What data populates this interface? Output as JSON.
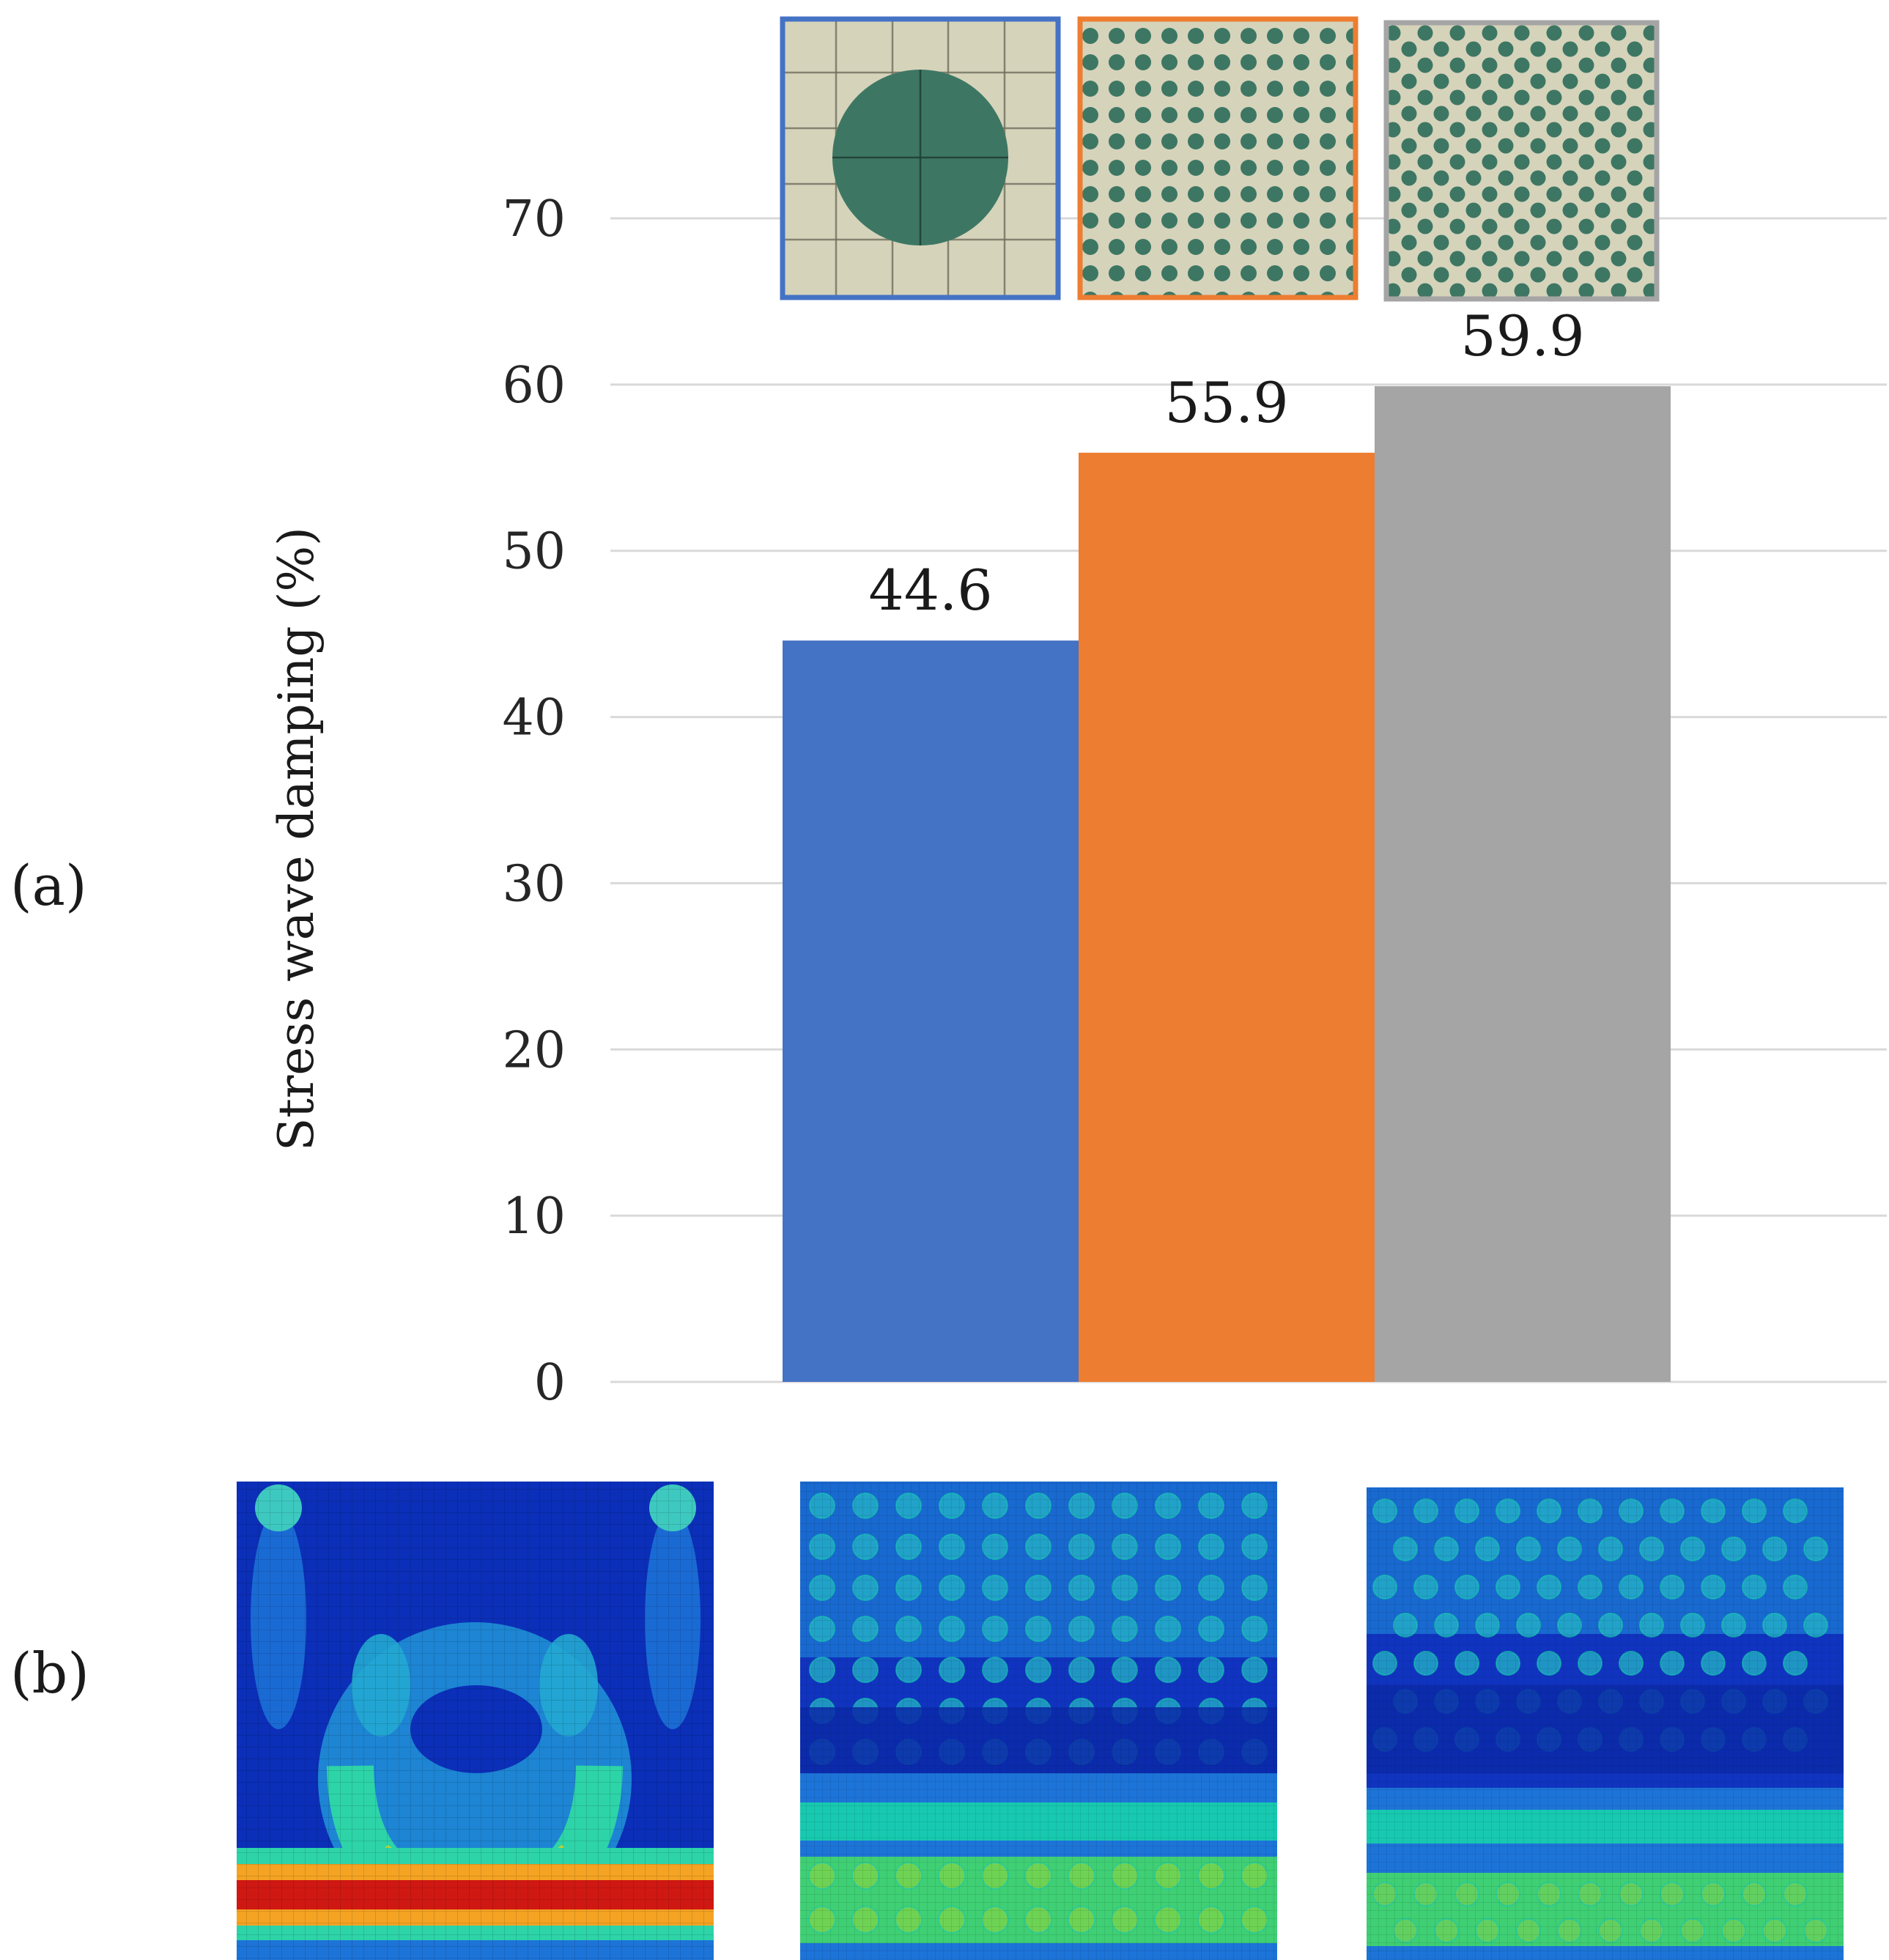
{
  "chart_data": {
    "type": "bar",
    "categories": [
      "single large fiber",
      "square array of fibers",
      "hexagonal array of fibers"
    ],
    "values": [
      44.6,
      55.9,
      59.9
    ],
    "data_labels": [
      "44.6",
      "55.9",
      "59.9"
    ],
    "colors": [
      "#4472c4",
      "#ed7d31",
      "#a5a5a5"
    ],
    "title": "",
    "xlabel": "",
    "ylabel": "Stress wave damping (%)",
    "ylim": [
      0,
      70
    ],
    "yticks": [
      0,
      10,
      20,
      30,
      40,
      50,
      60,
      70
    ],
    "ytick_labels": [
      "0",
      "10",
      "20",
      "30",
      "40",
      "50",
      "60",
      "70"
    ],
    "grid": true
  },
  "panels": {
    "a_label": "(a)",
    "b_label": "(b)"
  },
  "microstructure_insets": [
    "single-fiber-cell",
    "square-array-cell",
    "hexagonal-array-cell"
  ],
  "stress_maps": [
    "single-fiber-stress-map",
    "square-array-stress-map",
    "hexagonal-array-stress-map"
  ],
  "colors": {
    "matrix": "#d6d3bb",
    "fiber": "#3d7763",
    "stress_low": "#0b2fb8",
    "stress_mid": "#17c9b0",
    "stress_high": "#d01812"
  }
}
